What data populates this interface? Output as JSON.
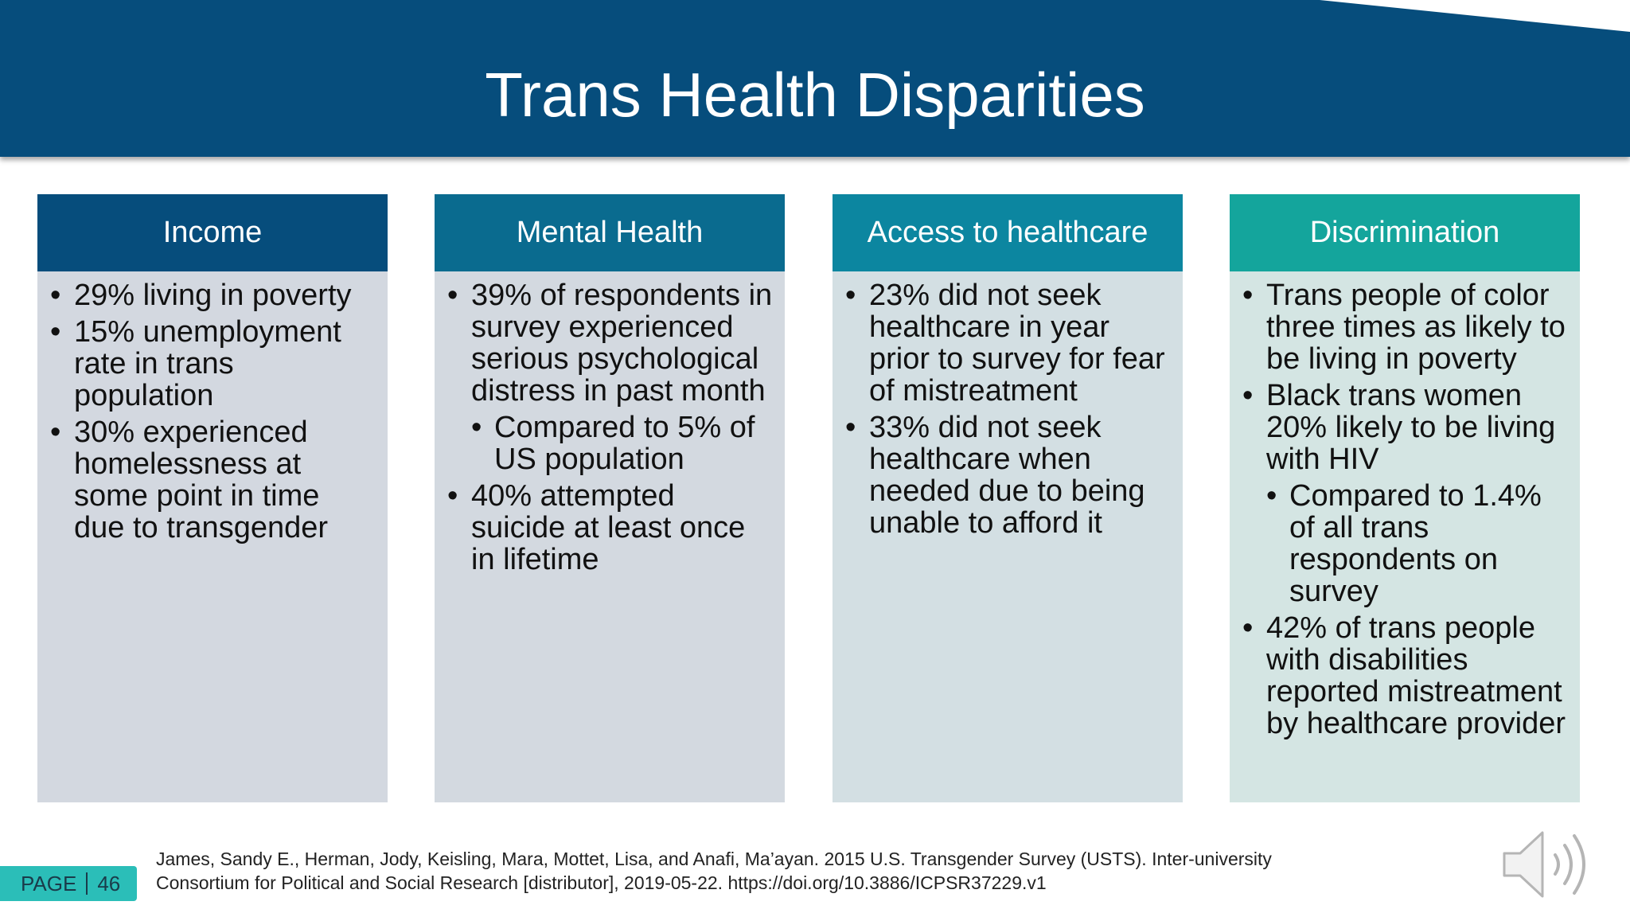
{
  "slide": {
    "title": "Trans Health Disparities",
    "columns": [
      {
        "heading": "Income",
        "header_color": "#064d7c",
        "body_color": "#d3d8e0",
        "bullets": [
          {
            "text": "29% living in poverty",
            "level": 1
          },
          {
            "text": "15% unemployment rate in trans population",
            "level": 1
          },
          {
            "text": "30% experienced homelessness at some point in time due to transgender",
            "level": 1
          }
        ]
      },
      {
        "heading": "Mental Health",
        "header_color": "#0a6b8f",
        "body_color": "#d3d9e0",
        "bullets": [
          {
            "text": "39% of respondents in survey experienced serious psychological distress in past month",
            "level": 1
          },
          {
            "text": "Compared to 5% of US population",
            "level": 2
          },
          {
            "text": "40% attempted suicide at least once in lifetime",
            "level": 1
          }
        ]
      },
      {
        "heading": "Access to healthcare",
        "header_color": "#0c86a0",
        "body_color": "#d3dfe3",
        "bullets": [
          {
            "text": "23% did not seek healthcare in year prior to survey for fear of mistreatment",
            "level": 1
          },
          {
            "text": "33% did not seek healthcare when needed due to being unable to afford it",
            "level": 1
          }
        ]
      },
      {
        "heading": "Discrimination",
        "header_color": "#14a59c",
        "body_color": "#d4e5e3",
        "bullets": [
          {
            "text": "Trans people of color three times as likely to be living in poverty",
            "level": 1
          },
          {
            "text": "Black trans women 20% likely to be living with HIV",
            "level": 1
          },
          {
            "text": "Compared to 1.4% of all trans respondents on survey",
            "level": 2
          },
          {
            "text": "42% of trans people with disabilities reported mistreatment by healthcare provider",
            "level": 1
          }
        ]
      }
    ]
  },
  "footer": {
    "page_label": "PAGE",
    "page_number": "46",
    "citation_line1": "James, Sandy E., Herman, Jody, Keisling, Mara, Mottet, Lisa, and Anafi, Ma’ayan. 2015 U.S. Transgender Survey (USTS). Inter-university",
    "citation_line2": "Consortium for Political and Social Research [distributor], 2019-05-22. https://doi.org/10.3886/ICPSR37229.v1"
  },
  "icons": {
    "audio": "speaker-icon"
  }
}
